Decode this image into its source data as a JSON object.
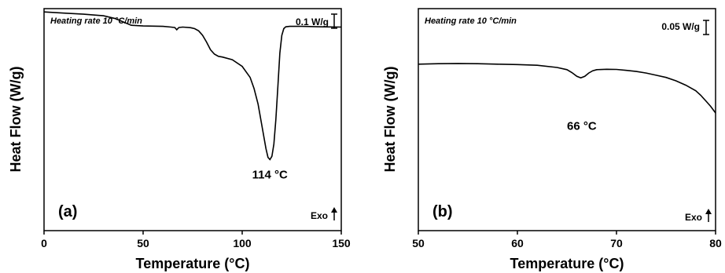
{
  "chart_data": [
    {
      "type": "line",
      "panel_label": "(a)",
      "note": "Heating rate 10 °C/min",
      "scale_bar_label": "0.1 W/g",
      "exo_label": "Exo",
      "xlabel": "Temperature (°C)",
      "ylabel": "Heat Flow (W/g)",
      "xlim": [
        0,
        150
      ],
      "ylim": [
        0,
        1
      ],
      "xticks": [
        0,
        50,
        100,
        150
      ],
      "xtick_labels": [
        "0",
        "50",
        "100",
        "150"
      ],
      "annotation": {
        "text": "114 °C",
        "x": 114,
        "y": 0.32
      },
      "x": [
        0,
        10,
        20,
        30,
        36,
        40,
        44,
        50,
        60,
        64,
        66,
        67,
        68,
        70,
        74,
        76,
        78,
        80,
        82,
        84,
        86,
        88,
        90,
        95,
        100,
        104,
        106,
        108,
        110,
        112,
        113,
        114,
        115,
        116,
        117,
        118,
        119,
        120,
        121,
        122,
        124,
        126,
        130,
        140,
        150
      ],
      "y": [
        0.985,
        0.98,
        0.975,
        0.968,
        0.955,
        0.94,
        0.925,
        0.922,
        0.92,
        0.917,
        0.915,
        0.905,
        0.915,
        0.917,
        0.914,
        0.91,
        0.9,
        0.88,
        0.85,
        0.815,
        0.795,
        0.785,
        0.782,
        0.77,
        0.74,
        0.69,
        0.64,
        0.57,
        0.47,
        0.37,
        0.33,
        0.32,
        0.335,
        0.39,
        0.5,
        0.65,
        0.8,
        0.88,
        0.91,
        0.918,
        0.92,
        0.92,
        0.92,
        0.918,
        0.917
      ]
    },
    {
      "type": "line",
      "panel_label": "(b)",
      "note": "Heating rate 10 °C/min",
      "scale_bar_label": "0.05 W/g",
      "exo_label": "Exo",
      "xlabel": "Temperature (°C)",
      "ylabel": "Heat Flow (W/g)",
      "xlim": [
        50,
        80
      ],
      "ylim": [
        0,
        1
      ],
      "xticks": [
        50,
        60,
        70,
        80
      ],
      "xtick_labels": [
        "50",
        "60",
        "70",
        "80"
      ],
      "annotation": {
        "text": "66 °C",
        "x": 66.5,
        "y": 0.55
      },
      "x": [
        50,
        52,
        54,
        56,
        58,
        60,
        62,
        64,
        65,
        65.5,
        66,
        66.4,
        66.8,
        67.2,
        67.6,
        68,
        69,
        70,
        71,
        72,
        73,
        74,
        75,
        76,
        77,
        78,
        78.5,
        79,
        79.5,
        80
      ],
      "y": [
        0.75,
        0.752,
        0.753,
        0.752,
        0.75,
        0.748,
        0.745,
        0.735,
        0.725,
        0.712,
        0.695,
        0.688,
        0.695,
        0.71,
        0.72,
        0.725,
        0.727,
        0.726,
        0.722,
        0.717,
        0.71,
        0.7,
        0.69,
        0.675,
        0.655,
        0.63,
        0.61,
        0.585,
        0.56,
        0.53
      ]
    }
  ]
}
